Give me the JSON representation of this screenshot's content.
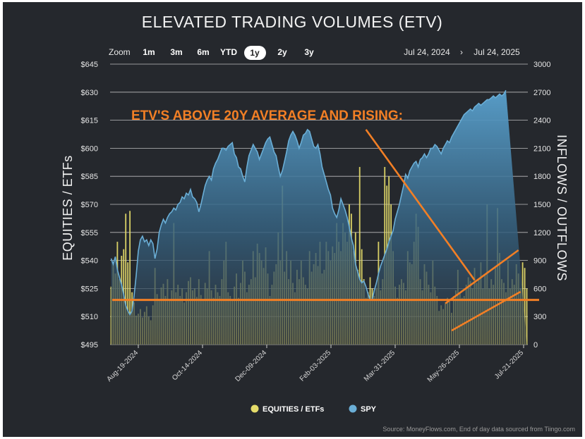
{
  "chart_data": {
    "type": "bar+area",
    "title": "ELEVATED TRADING VOLUMES (ETV)",
    "zoom": {
      "label": "Zoom",
      "options": [
        "1m",
        "3m",
        "6m",
        "YTD",
        "1y",
        "2y",
        "3y"
      ],
      "selected": "1y"
    },
    "date_range": {
      "from": "Jul 24, 2024",
      "separator": "›",
      "to": "Jul 24, 2025"
    },
    "left_axis": {
      "label": "EQUITIES / ETFs",
      "ticks": [
        "$645",
        "$630",
        "$615",
        "$600",
        "$585",
        "$570",
        "$555",
        "$540",
        "$525",
        "$510",
        "$495"
      ],
      "range": [
        495,
        645
      ]
    },
    "right_axis": {
      "label": "INFLOWS / OUTFLOWS",
      "ticks": [
        "3000",
        "2700",
        "2400",
        "2100",
        "1800",
        "1500",
        "1200",
        "900",
        "600",
        "300",
        "0"
      ],
      "range": [
        0,
        3000
      ]
    },
    "x_ticks": [
      "Aug-19-2024",
      "Oct-14-2024",
      "Dec-09-2024",
      "Feb-03-2025",
      "Mar-31-2025",
      "May-26-2025",
      "Jul-21-2025"
    ],
    "series": [
      {
        "name": "EQUITIES / ETFs",
        "type": "bar",
        "color": "#e5dc6a",
        "axis": "right",
        "values": [
          620,
          880,
          760,
          1100,
          700,
          950,
          1020,
          1400,
          880,
          1430,
          560,
          450,
          310,
          330,
          380,
          290,
          350,
          410,
          300,
          260,
          420,
          820,
          540,
          480,
          610,
          650,
          520,
          700,
          470,
          580,
          1300,
          560,
          640,
          520,
          600,
          450,
          560,
          680,
          720,
          580,
          600,
          510,
          700,
          530,
          480,
          660,
          600,
          1000,
          580,
          500,
          640,
          560,
          520,
          700,
          900,
          1100,
          560,
          520,
          480,
          620,
          760,
          500,
          660,
          900,
          780,
          560,
          640,
          700,
          1000,
          720,
          1080,
          980,
          900,
          820,
          1040,
          760,
          520,
          640,
          780,
          860,
          1200,
          900,
          1700,
          780,
          1000,
          700,
          900,
          660,
          560,
          800,
          700,
          900,
          720,
          640,
          600,
          1000,
          780,
          860,
          980,
          840,
          1100,
          760,
          800,
          1100,
          1000,
          900,
          1050,
          980,
          1300,
          1100,
          1000,
          1300,
          1200,
          1100,
          1500,
          1400,
          1000,
          1200,
          800,
          1900,
          1020,
          700,
          500,
          560,
          720,
          600,
          520,
          600,
          1100,
          580,
          700,
          1900,
          1700,
          1800,
          1500,
          1000,
          620,
          500,
          640,
          700,
          660,
          580,
          1000,
          880,
          860,
          1100,
          1400,
          1260,
          700,
          580,
          860,
          780,
          640,
          560,
          900,
          620,
          520,
          360,
          420,
          380,
          440,
          500,
          460,
          340,
          520,
          580,
          800,
          560,
          500,
          520,
          640,
          720,
          680,
          600,
          820,
          660,
          700,
          880,
          600,
          740,
          1500,
          600,
          700,
          640,
          820,
          1460,
          980,
          700,
          660,
          560,
          900,
          600,
          700,
          640,
          860,
          760,
          600,
          880,
          820,
          600
        ]
      },
      {
        "name": "SPY",
        "type": "area",
        "color": "#6aaed6",
        "axis": "left",
        "values": [
          541,
          538,
          542,
          535,
          531,
          527,
          522,
          516,
          513,
          511,
          513,
          521,
          532,
          545,
          551,
          553,
          550,
          551,
          548,
          551,
          549,
          541,
          546,
          555,
          559,
          562,
          560,
          563,
          565,
          566,
          568,
          567,
          570,
          571,
          574,
          573,
          576,
          575,
          578,
          574,
          573,
          571,
          566,
          570,
          575,
          580,
          583,
          585,
          583,
          589,
          592,
          594,
          597,
          600,
          600,
          599,
          601,
          602,
          603,
          597,
          595,
          590,
          589,
          585,
          582,
          590,
          596,
          599,
          602,
          600,
          598,
          594,
          597,
          600,
          603,
          605,
          606,
          602,
          598,
          596,
          590,
          585,
          588,
          593,
          598,
          604,
          607,
          609,
          607,
          604,
          600,
          603,
          607,
          608,
          610,
          609,
          605,
          601,
          600,
          602,
          597,
          590,
          586,
          582,
          578,
          575,
          568,
          565,
          563,
          567,
          573,
          570,
          567,
          563,
          558,
          552,
          548,
          538,
          534,
          530,
          528,
          529,
          526,
          522,
          519,
          519,
          524,
          528,
          533,
          537,
          540,
          543,
          546,
          550,
          553,
          556,
          562,
          566,
          570,
          575,
          580,
          586,
          584,
          588,
          590,
          592,
          593,
          590,
          594,
          595,
          597,
          595,
          597,
          600,
          600,
          602,
          601,
          599,
          597,
          600,
          602,
          604,
          603,
          606,
          608,
          610,
          612,
          614,
          616,
          618,
          619,
          620,
          621,
          620,
          622,
          623,
          624,
          623,
          624,
          625,
          626,
          626,
          627,
          628,
          627,
          628,
          629,
          628,
          629,
          631
        ]
      }
    ],
    "annotations": {
      "headline": "ETV'S ABOVE 20Y AVERAGE AND RISING:",
      "average_line_value": 478,
      "trend_lines": [
        {
          "from": [
            122,
            2300
          ],
          "to": [
            174,
            690
          ]
        },
        {
          "from": [
            160,
            440
          ],
          "to": [
            195,
            1010
          ]
        },
        {
          "from": [
            163,
            150
          ],
          "to": [
            196,
            565
          ]
        }
      ]
    },
    "legend": [
      {
        "name": "EQUITIES / ETFs",
        "color": "#e5dc6a"
      },
      {
        "name": "SPY",
        "color": "#6aaed6"
      }
    ],
    "source": "Source: MoneyFlows.com, End of day data sourced from Tiingo.com"
  }
}
